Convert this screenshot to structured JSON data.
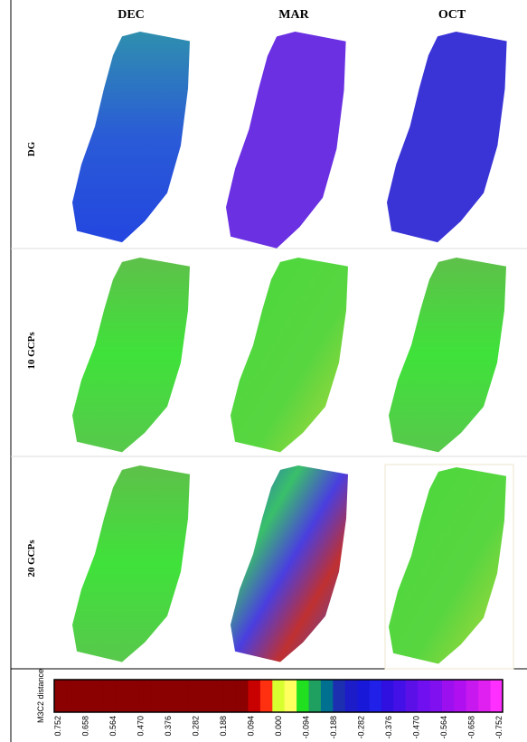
{
  "columns": [
    "DEC",
    "MAR",
    "OCT"
  ],
  "rows": [
    "DG",
    "10 GCPs",
    "20 GCPs"
  ],
  "colorbar": {
    "label": "M3C2 distance",
    "ticks": [
      "0.752",
      "0.658",
      "0.564",
      "0.470",
      "0.376",
      "0.282",
      "0.188",
      "0.094",
      "0.000",
      "-0.094",
      "-0.188",
      "-0.282",
      "-0.376",
      "-0.470",
      "-0.564",
      "-0.658",
      "-0.752"
    ]
  }
}
